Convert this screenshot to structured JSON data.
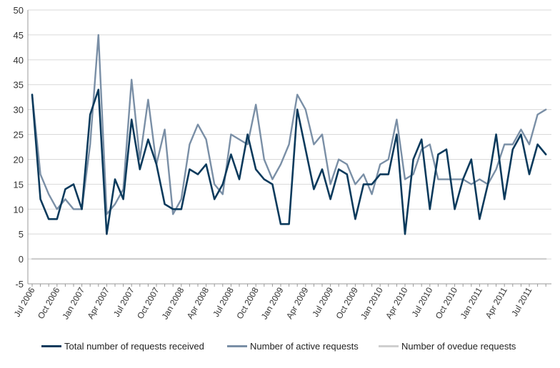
{
  "chart_data": {
    "type": "line",
    "title": "",
    "xlabel": "",
    "ylabel": "",
    "ylim": [
      -5,
      50
    ],
    "yticks": [
      -5,
      0,
      5,
      10,
      15,
      20,
      25,
      30,
      35,
      40,
      45,
      50
    ],
    "grid": true,
    "legend_position": "bottom",
    "x_start": "Jul 2006",
    "frequency": "monthly",
    "xtick_labels": [
      "Jul 2006",
      "Oct 2006",
      "Jan 2007",
      "Apr 2007",
      "Jul 2007",
      "Oct 2007",
      "Jan 2008",
      "Apr 2008",
      "Jul 2008",
      "Oct 2008",
      "Jan 2009",
      "Apr 2009",
      "Jul 2009",
      "Oct 2009",
      "Jan 2010",
      "Apr 2010",
      "Jul 2010",
      "Oct 2010",
      "Jan 2011",
      "Apr 2011",
      "Jul 2011"
    ],
    "series": [
      {
        "name": "Total number of requests received",
        "color": "#0b3a5c",
        "values": [
          33,
          12,
          8,
          8,
          14,
          15,
          10,
          29,
          34,
          5,
          16,
          12,
          28,
          18,
          24,
          19,
          11,
          10,
          10,
          18,
          17,
          19,
          12,
          15,
          21,
          16,
          25,
          18,
          16,
          15,
          7,
          7,
          30,
          22,
          14,
          18,
          12,
          18,
          17,
          8,
          15,
          15,
          17,
          17,
          25,
          5,
          20,
          24,
          10,
          21,
          22,
          10,
          16,
          20,
          8,
          15,
          25,
          12,
          22,
          25,
          17,
          23,
          21
        ]
      },
      {
        "name": "Number of active requests",
        "color": "#7a8fa6",
        "values": [
          33,
          17,
          13,
          10,
          12,
          10,
          10,
          23,
          45,
          9,
          11,
          14,
          36,
          20,
          32,
          19,
          26,
          9,
          12,
          23,
          27,
          24,
          15,
          13,
          25,
          24,
          23,
          31,
          20,
          16,
          19,
          23,
          33,
          30,
          23,
          25,
          15,
          20,
          19,
          15,
          17,
          13,
          19,
          20,
          28,
          16,
          17,
          22,
          23,
          16,
          16,
          16,
          16,
          15,
          16,
          15,
          18,
          23,
          23,
          26,
          23,
          29,
          30
        ]
      },
      {
        "name": "Number of ovedue requests",
        "color": "#cfcfcf",
        "values": [
          0,
          0,
          0,
          0,
          0,
          0,
          0,
          0,
          0,
          0,
          0,
          0,
          0,
          0,
          0,
          0,
          0,
          0,
          0,
          0,
          0,
          0,
          0,
          0,
          0,
          0,
          0,
          0,
          0,
          0,
          0,
          0,
          0,
          0,
          0,
          0,
          0,
          0,
          0,
          0,
          0,
          0,
          0,
          0,
          0,
          0,
          0,
          0,
          0,
          0,
          0,
          0,
          0,
          0,
          0,
          0,
          0,
          0,
          0,
          0,
          0,
          0,
          0
        ]
      }
    ]
  }
}
